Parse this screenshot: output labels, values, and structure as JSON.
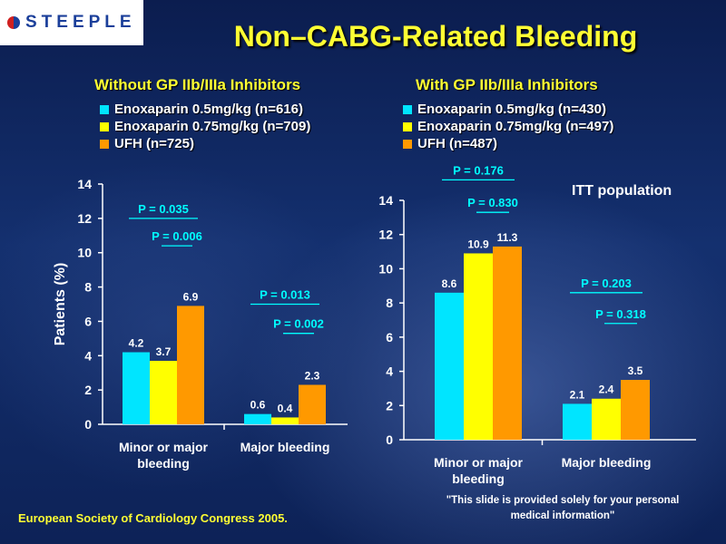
{
  "logo": {
    "text": "STEEPLE"
  },
  "title": "Non–CABG-Related Bleeding",
  "itt_note": "ITT population",
  "footer": {
    "conference": "European Society of Cardiology Congress 2005.",
    "disclaimer_line1": "\"This slide is provided solely for your personal",
    "disclaimer_line2": "medical information\""
  },
  "colors": {
    "enox05": "#00e5ff",
    "enox075": "#ffff00",
    "ufh": "#ff9900",
    "pvalue": "#00ffff",
    "title": "#ffff33"
  },
  "chart_data": [
    {
      "type": "bar",
      "title": "Without GP IIb/IIIa Inhibitors",
      "ylabel": "Patients (%)",
      "ylim": [
        0,
        14
      ],
      "yticks": [
        0,
        2,
        4,
        6,
        8,
        10,
        12,
        14
      ],
      "categories": [
        "Minor or major\nbleeding",
        "Major bleeding"
      ],
      "series": [
        {
          "name": "Enoxaparin 0.5mg/kg (n=616)",
          "values": [
            4.2,
            0.6
          ],
          "labels": [
            "4.2",
            "0.6"
          ]
        },
        {
          "name": "Enoxaparin 0.75mg/kg (n=709)",
          "values": [
            3.7,
            0.4
          ],
          "labels": [
            "3.7",
            "0.4"
          ]
        },
        {
          "name": "UFH (n=725)",
          "values": [
            6.9,
            2.3
          ],
          "labels": [
            "6.9",
            "2.3"
          ]
        }
      ],
      "p_values": [
        {
          "category": 0,
          "text": "P = 0.035",
          "level": 12.0
        },
        {
          "category": 0,
          "text": "P = 0.006",
          "level": 10.4
        },
        {
          "category": 1,
          "text": "P = 0.013",
          "level": 7.0
        },
        {
          "category": 1,
          "text": "P = 0.002",
          "level": 5.3
        }
      ]
    },
    {
      "type": "bar",
      "title": "With GP IIb/IIIa Inhibitors",
      "ylabel": "",
      "ylim": [
        0,
        14
      ],
      "yticks": [
        0,
        2,
        4,
        6,
        8,
        10,
        12,
        14
      ],
      "categories": [
        "Minor or major\nbleeding",
        "Major bleeding"
      ],
      "series": [
        {
          "name": "Enoxaparin 0.5mg/kg (n=430)",
          "values": [
            8.6,
            2.1
          ],
          "labels": [
            "8.6",
            "2.1"
          ]
        },
        {
          "name": "Enoxaparin 0.75mg/kg (n=497)",
          "values": [
            10.9,
            2.4
          ],
          "labels": [
            "10.9",
            "2.4"
          ]
        },
        {
          "name": "UFH (n=487)",
          "values": [
            11.3,
            3.5
          ],
          "labels": [
            "11.3",
            "3.5"
          ]
        }
      ],
      "p_values": [
        {
          "category": 0,
          "text": "P = 0.176",
          "level": 15.2
        },
        {
          "category": 0,
          "text": "P = 0.830",
          "level": 13.3
        },
        {
          "category": 1,
          "text": "P = 0.203",
          "level": 8.6
        },
        {
          "category": 1,
          "text": "P = 0.318",
          "level": 6.8
        }
      ]
    }
  ]
}
